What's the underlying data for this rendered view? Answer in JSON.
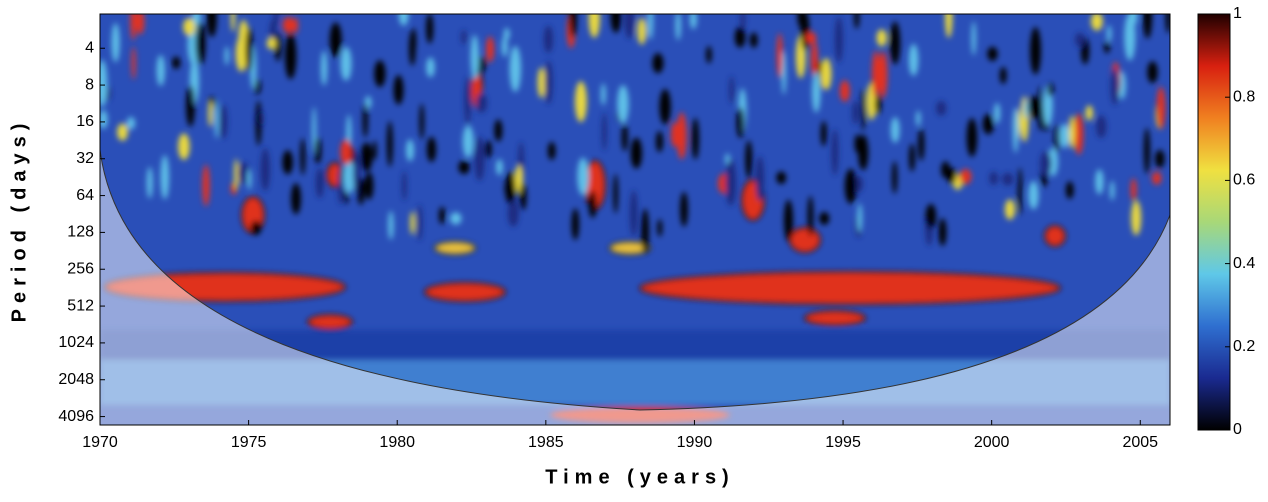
{
  "chart_data": {
    "type": "wavelet-coherence",
    "xlabel": "Time (years)",
    "ylabel": "Period (days)",
    "xlim": [
      1970,
      2006
    ],
    "xticks": [
      1970,
      1975,
      1980,
      1985,
      1990,
      1995,
      2000,
      2005
    ],
    "ylim": [
      2.1,
      4800
    ],
    "ylog_base": 2,
    "yticks": [
      4,
      8,
      16,
      32,
      64,
      128,
      256,
      512,
      1024,
      2048,
      4096
    ],
    "colorbar": {
      "colormap": "jet",
      "lim": [
        0,
        1
      ],
      "ticks": [
        0,
        0.2,
        0.4,
        0.6,
        0.8,
        1
      ]
    }
  }
}
